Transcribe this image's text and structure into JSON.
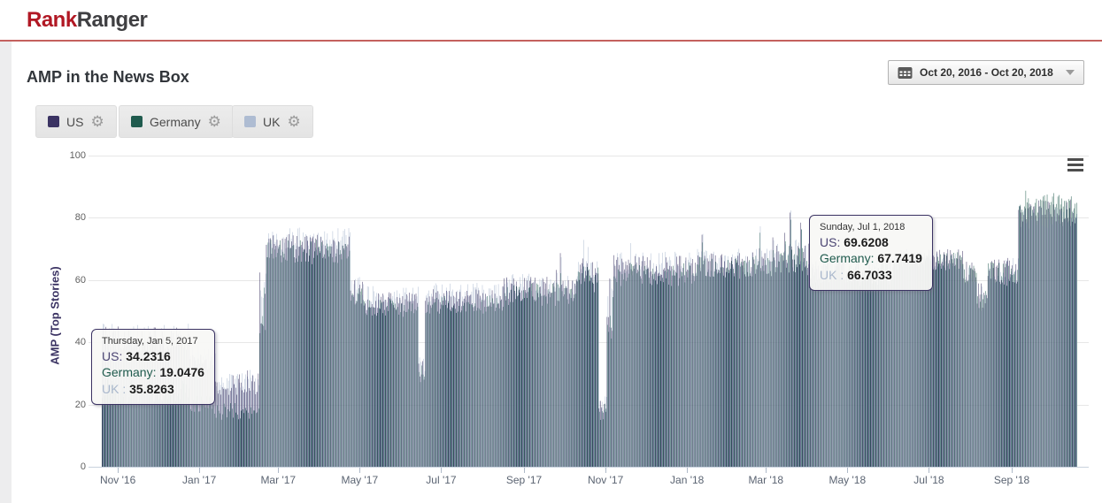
{
  "header": {
    "logo": {
      "rank": "Rank",
      "ranger": "Ranger"
    }
  },
  "page_title": "AMP in the News Box",
  "toolbar": {
    "date_range": "Oct 20, 2016 - Oct 20, 2018"
  },
  "legend": [
    {
      "name": "US",
      "color": "#3b3363"
    },
    {
      "name": "Germany",
      "color": "#205b4e"
    },
    {
      "name": "UK",
      "color": "#aebcd2"
    }
  ],
  "chart_data": {
    "type": "bar",
    "title": "AMP in the News Box",
    "ylabel": "AMP (Top Stories)",
    "ylim": [
      0,
      100
    ],
    "yticks": [
      100,
      80,
      60,
      40,
      20,
      0
    ],
    "grid": true,
    "legend_position": "top-left",
    "x_start": "Oct 20, 2016",
    "x_end": "Oct 20, 2018",
    "days": 730,
    "xticks": [
      {
        "label": "Nov '16",
        "day": 12
      },
      {
        "label": "Jan '17",
        "day": 73
      },
      {
        "label": "Mar '17",
        "day": 132
      },
      {
        "label": "May '17",
        "day": 193
      },
      {
        "label": "Jul '17",
        "day": 254
      },
      {
        "label": "Sep '17",
        "day": 316
      },
      {
        "label": "Nov '17",
        "day": 377
      },
      {
        "label": "Jan '18",
        "day": 438
      },
      {
        "label": "Mar '18",
        "day": 497
      },
      {
        "label": "May '18",
        "day": 558
      },
      {
        "label": "Jul '18",
        "day": 619
      },
      {
        "label": "Sep '18",
        "day": 681
      }
    ],
    "series": [
      {
        "name": "US",
        "color": "#3b3363"
      },
      {
        "name": "Germany",
        "color": "#205b4e"
      },
      {
        "name": "UK",
        "color": "#aebcd2"
      }
    ],
    "segments": [
      {
        "from": 0,
        "to": 66,
        "us": [
          41,
          4
        ],
        "de": [
          24,
          4
        ],
        "uk": [
          42,
          4
        ]
      },
      {
        "from": 66,
        "to": 85,
        "us": [
          34,
          3
        ],
        "de": [
          20,
          3
        ],
        "uk": [
          36,
          3
        ]
      },
      {
        "from": 85,
        "to": 118,
        "us": [
          27,
          4
        ],
        "de": [
          18,
          3
        ],
        "uk": [
          28,
          4
        ]
      },
      {
        "from": 118,
        "to": 123,
        "us": [
          55,
          10
        ],
        "de": [
          50,
          10
        ],
        "uk": [
          56,
          10
        ]
      },
      {
        "from": 123,
        "to": 186,
        "us": [
          71,
          4
        ],
        "de": [
          69,
          4
        ],
        "uk": [
          73,
          4
        ]
      },
      {
        "from": 186,
        "to": 196,
        "us": [
          56,
          4
        ],
        "de": [
          54,
          4
        ],
        "uk": [
          57,
          4
        ]
      },
      {
        "from": 196,
        "to": 237,
        "us": [
          53,
          3
        ],
        "de": [
          51,
          3
        ],
        "uk": [
          55,
          3
        ]
      },
      {
        "from": 237,
        "to": 242,
        "us": [
          31,
          4
        ],
        "de": [
          29,
          4
        ],
        "uk": [
          32,
          4
        ]
      },
      {
        "from": 242,
        "to": 300,
        "us": [
          54,
          3
        ],
        "de": [
          52,
          3
        ],
        "uk": [
          56,
          3
        ]
      },
      {
        "from": 300,
        "to": 355,
        "us": [
          57,
          4
        ],
        "de": [
          55,
          4
        ],
        "uk": [
          58,
          4
        ],
        "spike": [
          0.05,
          9
        ]
      },
      {
        "from": 355,
        "to": 372,
        "us": [
          62,
          4
        ],
        "de": [
          60,
          4
        ],
        "uk": [
          63,
          4
        ],
        "spike": [
          0.08,
          8
        ]
      },
      {
        "from": 372,
        "to": 378,
        "us": [
          19,
          3
        ],
        "de": [
          18,
          3
        ],
        "uk": [
          20,
          3
        ]
      },
      {
        "from": 378,
        "to": 383,
        "us": [
          52,
          9
        ],
        "de": [
          50,
          9
        ],
        "uk": [
          53,
          9
        ]
      },
      {
        "from": 383,
        "to": 445,
        "us": [
          64,
          4
        ],
        "de": [
          62,
          4
        ],
        "uk": [
          65,
          4
        ],
        "spike": [
          0.05,
          8
        ]
      },
      {
        "from": 445,
        "to": 505,
        "us": [
          65,
          4
        ],
        "de": [
          64,
          4
        ],
        "uk": [
          66,
          4
        ],
        "spike": [
          0.05,
          9
        ]
      },
      {
        "from": 505,
        "to": 530,
        "us": [
          67,
          5
        ],
        "de": [
          66,
          5
        ],
        "uk": [
          68,
          5
        ],
        "spike": [
          0.08,
          11
        ]
      },
      {
        "from": 530,
        "to": 592,
        "us": [
          63,
          4
        ],
        "de": [
          62,
          4
        ],
        "uk": [
          64,
          4
        ]
      },
      {
        "from": 592,
        "to": 645,
        "us": [
          67,
          3
        ],
        "de": [
          66,
          3
        ],
        "uk": [
          66,
          3
        ]
      },
      {
        "from": 645,
        "to": 655,
        "us": [
          63,
          4
        ],
        "de": [
          62,
          4
        ],
        "uk": [
          62,
          4
        ]
      },
      {
        "from": 655,
        "to": 663,
        "us": [
          55,
          4
        ],
        "de": [
          54,
          4
        ],
        "uk": [
          54,
          4
        ]
      },
      {
        "from": 663,
        "to": 686,
        "us": [
          63,
          4
        ],
        "de": [
          62,
          4
        ],
        "uk": [
          63,
          4
        ]
      },
      {
        "from": 686,
        "to": 730,
        "us": [
          82,
          4
        ],
        "de": [
          85,
          4
        ],
        "uk": [
          80,
          4
        ]
      }
    ],
    "known_points": [
      {
        "day": 77,
        "date": "Thursday, Jan 5, 2017",
        "US": 34.2316,
        "Germany": 19.0476,
        "UK": 35.8263
      },
      {
        "day": 619,
        "date": "Sunday, Jul 1, 2018",
        "US": 69.6208,
        "Germany": 67.7419,
        "UK": 66.7033
      }
    ]
  },
  "tooltips": [
    {
      "date": "Thursday, Jan 5, 2017",
      "rows": [
        {
          "label": "US:",
          "value": "34.2316",
          "color": "#4a4472"
        },
        {
          "label": "Germany:",
          "value": "19.0476",
          "color": "#205b4e"
        },
        {
          "label": "UK :",
          "value": "35.8263",
          "color": "#a9b7cc"
        }
      ]
    },
    {
      "date": "Sunday, Jul 1, 2018",
      "rows": [
        {
          "label": "US:",
          "value": "69.6208",
          "color": "#4a4472"
        },
        {
          "label": "Germany:",
          "value": "67.7419",
          "color": "#205b4e"
        },
        {
          "label": "UK :",
          "value": "66.7033",
          "color": "#a9b7cc"
        }
      ]
    }
  ]
}
